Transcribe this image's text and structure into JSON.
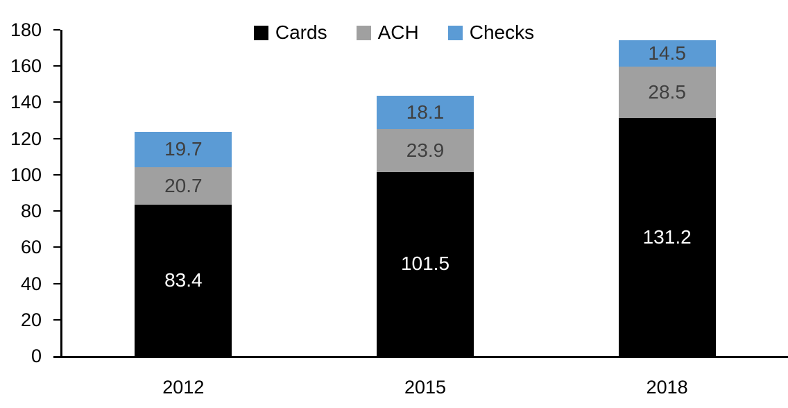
{
  "chart_data": {
    "type": "bar",
    "stacked": true,
    "title": "",
    "xlabel": "",
    "ylabel": "",
    "categories": [
      "2012",
      "2015",
      "2018"
    ],
    "series": [
      {
        "name": "Cards",
        "color": "#000000",
        "label_color": "#ffffff",
        "values": [
          83.4,
          101.5,
          131.2
        ]
      },
      {
        "name": "ACH",
        "color": "#a0a0a0",
        "label_color": "#3f3f3f",
        "values": [
          20.7,
          23.9,
          28.5
        ]
      },
      {
        "name": "Checks",
        "color": "#5b9bd5",
        "label_color": "#3f3f3f",
        "values": [
          19.7,
          18.1,
          14.5
        ]
      }
    ],
    "ylim": [
      0,
      180
    ],
    "yticks": [
      0,
      20,
      40,
      60,
      80,
      100,
      120,
      140,
      160,
      180
    ],
    "legend_position": "top-center",
    "grid": false,
    "axis_color": "#000000",
    "text_color": "#000000"
  }
}
